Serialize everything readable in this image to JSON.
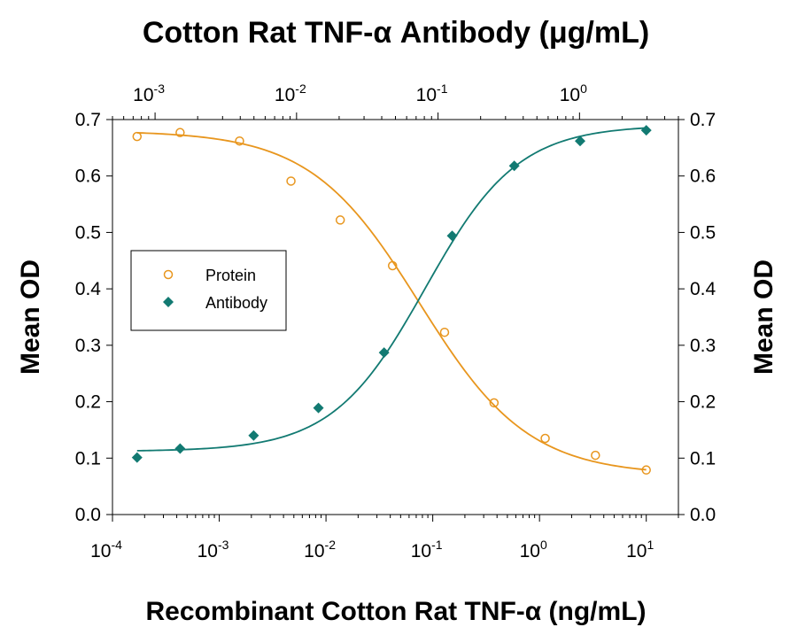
{
  "chart_data": {
    "type": "scatter",
    "title": "Cotton Rat TNF-α Antibody (μg/mL)",
    "xlabel": "Recombinant Cotton Rat TNF-α (ng/mL)",
    "ylabel_left": "Mean OD",
    "ylabel_right": "Mean OD",
    "x_scale": "log",
    "xlim": [
      0.0001,
      20
    ],
    "ylim": [
      0,
      0.7
    ],
    "x_ticks": [
      {
        "base": "10",
        "exp": "-4",
        "value": 0.0001
      },
      {
        "base": "10",
        "exp": "-3",
        "value": 0.001
      },
      {
        "base": "10",
        "exp": "-2",
        "value": 0.01
      },
      {
        "base": "10",
        "exp": "-1",
        "value": 0.1
      },
      {
        "base": "10",
        "exp": "0",
        "value": 1
      },
      {
        "base": "10",
        "exp": "1",
        "value": 10
      }
    ],
    "top_axis": {
      "scale": "log",
      "xlim": [
        0.0005,
        5
      ],
      "ticks": [
        {
          "base": "10",
          "exp": "-3",
          "value": 0.001
        },
        {
          "base": "10",
          "exp": "-2",
          "value": 0.01
        },
        {
          "base": "10",
          "exp": "-1",
          "value": 0.1
        },
        {
          "base": "10",
          "exp": "0",
          "value": 1
        }
      ]
    },
    "y_ticks": [
      "0.0",
      "0.1",
      "0.2",
      "0.3",
      "0.4",
      "0.5",
      "0.6",
      "0.7"
    ],
    "legend_position": "left",
    "series": [
      {
        "name": "Protein",
        "marker": "open-circle",
        "color": "#E8961E",
        "x": [
          0.00017,
          0.00043,
          0.00155,
          0.0047,
          0.0136,
          0.042,
          0.129,
          0.375,
          1.13,
          3.34,
          10.0
        ],
        "y": [
          0.67,
          0.677,
          0.662,
          0.591,
          0.522,
          0.441,
          0.323,
          0.198,
          0.135,
          0.105,
          0.079
        ],
        "fit": {
          "bottom": 0.07,
          "top": 0.68,
          "ec50": 0.075,
          "hill": -0.85
        }
      },
      {
        "name": "Antibody",
        "marker": "filled-diamond",
        "color": "#127A72",
        "x": [
          0.00017,
          0.00043,
          0.0021,
          0.0085,
          0.035,
          0.152,
          0.58,
          2.4,
          10.0
        ],
        "y": [
          0.101,
          0.117,
          0.14,
          0.189,
          0.287,
          0.494,
          0.618,
          0.662,
          0.681
        ],
        "fit": {
          "bottom": 0.112,
          "top": 0.69,
          "ec50": 0.085,
          "hill": 1.0
        }
      }
    ]
  }
}
